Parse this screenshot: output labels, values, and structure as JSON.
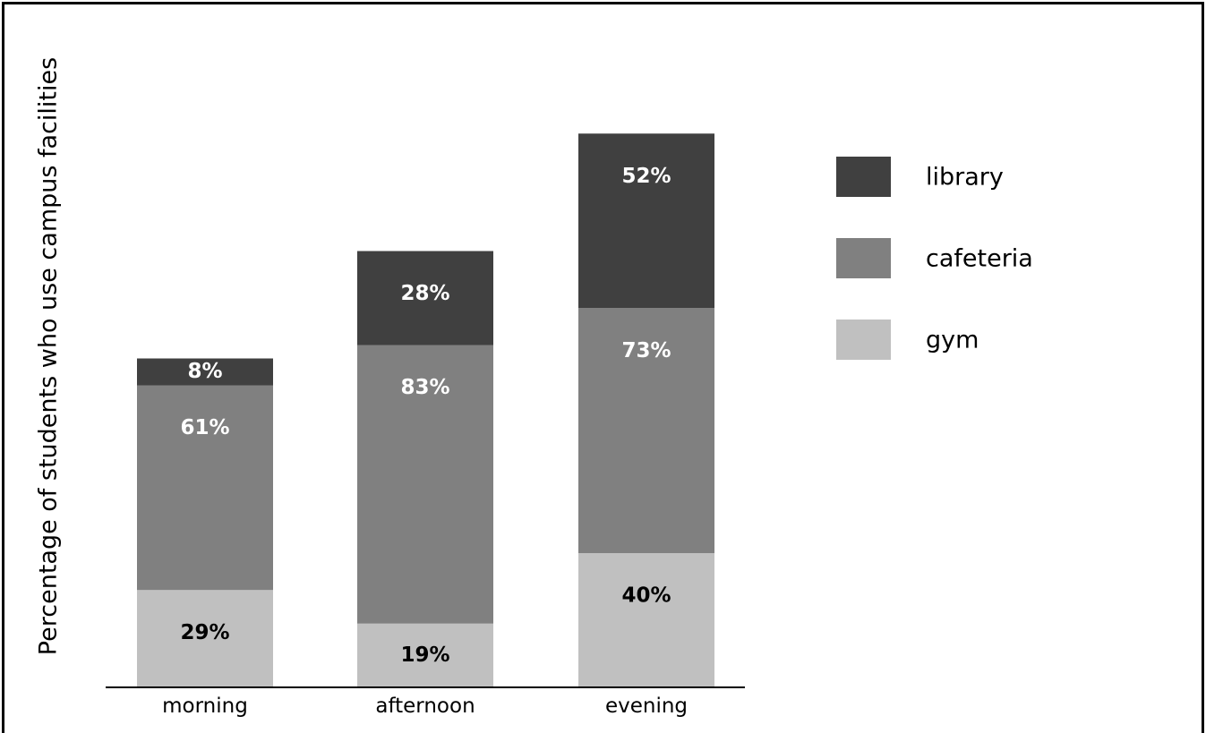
{
  "chart_data": {
    "type": "bar",
    "stacked": true,
    "title": "",
    "xlabel": "",
    "ylabel": "Percentage of students who use campus facilities",
    "categories": [
      "morning",
      "afternoon",
      "evening"
    ],
    "series": [
      {
        "name": "gym",
        "values": [
          29,
          19,
          40
        ],
        "labels": [
          "29%",
          "19%",
          "40%"
        ],
        "color": "#c0c0c0",
        "label_color": "#000000"
      },
      {
        "name": "cafeteria",
        "values": [
          61,
          83,
          73
        ],
        "labels": [
          "61%",
          "83%",
          "73%"
        ],
        "color": "#808080",
        "label_color": "#ffffff"
      },
      {
        "name": "library",
        "values": [
          8,
          28,
          52
        ],
        "labels": [
          "8%",
          "28%",
          "52%"
        ],
        "color": "#404040",
        "label_color": "#ffffff"
      }
    ],
    "legend": {
      "position": "right",
      "order": [
        "library",
        "cafeteria",
        "gym"
      ]
    },
    "grid": false
  }
}
